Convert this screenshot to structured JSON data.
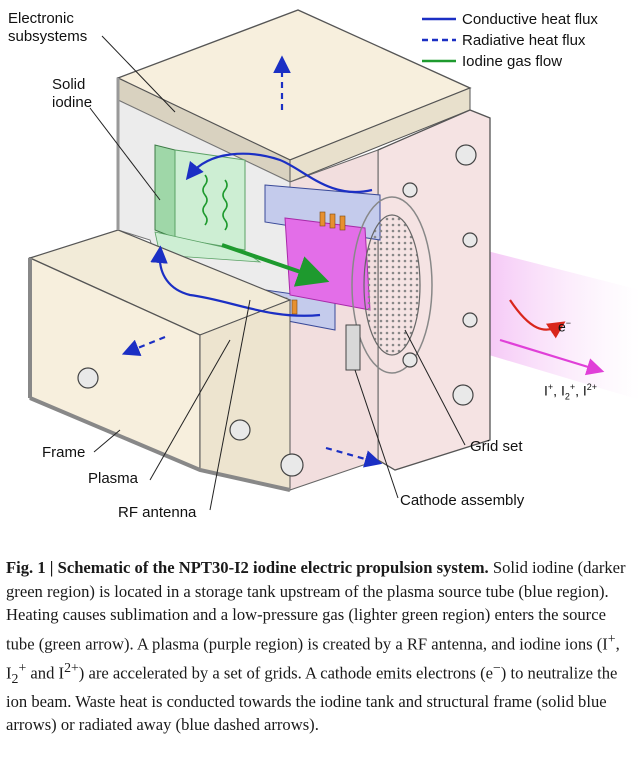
{
  "figure": {
    "labels": {
      "electronic_subsystems_1": "Electronic",
      "electronic_subsystems_2": "subsystems",
      "solid_iodine_1": "Solid",
      "solid_iodine_2": "iodine",
      "frame": "Frame",
      "plasma": "Plasma",
      "rf_antenna": "RF antenna",
      "grid_set": "Grid set",
      "cathode_assembly": "Cathode assembly",
      "electron": "e",
      "electron_sup": "−"
    },
    "legend": {
      "conductive": "Conductive heat flux",
      "radiative": "Radiative heat flux",
      "iodine_gas": "Iodine gas flow"
    },
    "ions": {
      "i_plus": "I",
      "i_plus_sup": "+",
      "i2": "I",
      "i2_sub": "2",
      "i2_sup": "+",
      "i2plus": "I",
      "i2plus_sup": "2+",
      "sep": ","
    },
    "colors": {
      "conductive": "#1b2fc4",
      "radiative": "#1b2fc4",
      "iodine_gas": "#1e9a2e",
      "plasma": "#e36ee8",
      "housing": "#f7efdd",
      "electron_arrow": "#d9261c",
      "ion_beam": "#e040d8"
    }
  },
  "caption": {
    "fig_label": "Fig. 1 | ",
    "title": "Schematic of the NPT30-I2 iodine electric propulsion system.",
    "p1": " Solid iodine (darker green region) is located in a storage tank upstream of the plasma source tube (blue region). Heating causes sublimation and a low-pressure gas (lighter green region) enters the source tube (green arrow). A plasma (purple region) is created by a RF antenna, and iodine ions (I",
    "p1_sup": "+",
    "p2": ", I",
    "p2_sub": "2",
    "p2_sup": "+",
    "p3": " and I",
    "p3_sup": "2+",
    "p4": ") are accelerated by a set of grids. A cathode emits electrons (e",
    "p4_sup": "−",
    "p5": ") to neutralize the ion beam. Waste heat is conducted towards the iodine tank and structural frame (solid blue arrows) or radiated away (blue dashed arrows)."
  }
}
